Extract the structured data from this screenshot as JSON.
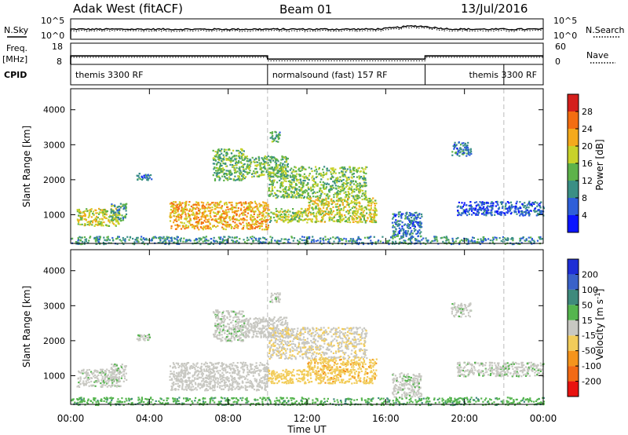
{
  "header": {
    "station": "Adak West (fitACF)",
    "beam": "Beam 01",
    "date": "13/Jul/2016"
  },
  "panel_labels": {
    "nsky": "N.Sky",
    "nsearch": "N.Search",
    "freq_line1": "Freq.",
    "freq_line2": "[MHz]",
    "nave": "Nave",
    "cpid": "CPID"
  },
  "nsky_ticks": {
    "top": "10^5",
    "bottom": "10^0"
  },
  "freq_ticks": [
    "18",
    "8"
  ],
  "nave_ticks": [
    "60",
    "0"
  ],
  "cpid_segments": [
    {
      "label": "themis 3300 RF",
      "start": 0,
      "end": 10
    },
    {
      "label": "normalsound (fast) 157 RF",
      "start": 10,
      "end": 18
    },
    {
      "label": "themis 3300 RF",
      "start": 18,
      "end": 24
    }
  ],
  "x_ticks": [
    "00:00",
    "04:00",
    "08:00",
    "12:00",
    "16:00",
    "20:00",
    "00:00"
  ],
  "x_label": "Time UT",
  "y_ticks": [
    "1000",
    "2000",
    "3000",
    "4000"
  ],
  "y_label": "Slant Range [km]",
  "power_scale": {
    "label": "Power [dB]",
    "ticks": [
      "4",
      "8",
      "12",
      "16",
      "20",
      "24",
      "28"
    ],
    "colors": [
      "#0a14ff",
      "#2e5fd9",
      "#3a8f85",
      "#5db24a",
      "#c8d22a",
      "#f4a91c",
      "#f36d11",
      "#d41f1c"
    ]
  },
  "velocity_scale": {
    "label": "Velocity [m s^-1]",
    "ticks": [
      "-200",
      "-100",
      "-50",
      "-15",
      "15",
      "50",
      "100",
      "200"
    ],
    "colors": [
      "#e8120f",
      "#f26a14",
      "#f5941c",
      "#f2cc5a",
      "#c8c8c2",
      "#55b54e",
      "#3f8a7c",
      "#3a62c9",
      "#1e2fd6"
    ]
  },
  "chart_data": {
    "type": "heatmap",
    "x_range_hours": [
      0,
      24
    ],
    "y_range_km": [
      180,
      4600
    ],
    "nsky_level": 1.2,
    "freq_mhz_segments": [
      {
        "start": 0,
        "end": 10,
        "value": 12
      },
      {
        "start": 10,
        "end": 18,
        "value": 10.5
      },
      {
        "start": 18,
        "end": 24,
        "value": 12
      }
    ],
    "nave_segments": [
      {
        "start": 0,
        "end": 10,
        "value": 20
      },
      {
        "start": 10,
        "end": 18,
        "value": 10
      },
      {
        "start": 18,
        "end": 24,
        "value": 20
      }
    ],
    "scatter_regions": [
      {
        "t0": 0.3,
        "t1": 2.5,
        "r0": 700,
        "r1": 1200,
        "power": 18,
        "velocity": 5
      },
      {
        "t0": 2.0,
        "t1": 2.8,
        "r0": 850,
        "r1": 1350,
        "power": 12,
        "velocity": 5
      },
      {
        "t0": 3.3,
        "t1": 4.1,
        "r0": 2000,
        "r1": 2200,
        "power": 8,
        "velocity": 5
      },
      {
        "t0": 5.0,
        "t1": 10.0,
        "r0": 600,
        "r1": 1400,
        "power": 22,
        "velocity": 0
      },
      {
        "t0": 7.2,
        "t1": 8.8,
        "r0": 2000,
        "r1": 2900,
        "power": 14,
        "velocity": 5
      },
      {
        "t0": 8.8,
        "t1": 11.0,
        "r0": 2100,
        "r1": 2700,
        "power": 14,
        "velocity": 0
      },
      {
        "t0": 10.0,
        "t1": 15.0,
        "r0": 1500,
        "r1": 2400,
        "power": 15,
        "velocity": -10
      },
      {
        "t0": 10.0,
        "t1": 12.0,
        "r0": 800,
        "r1": 1200,
        "power": 16,
        "velocity": -30
      },
      {
        "t0": 12.0,
        "t1": 15.5,
        "r0": 800,
        "r1": 1500,
        "power": 18,
        "velocity": -40
      },
      {
        "t0": 10.1,
        "t1": 10.6,
        "r0": 3100,
        "r1": 3400,
        "power": 12,
        "velocity": 5
      },
      {
        "t0": 16.3,
        "t1": 17.8,
        "r0": 400,
        "r1": 1100,
        "power": 8,
        "velocity": 5
      },
      {
        "t0": 19.3,
        "t1": 20.3,
        "r0": 2700,
        "r1": 3100,
        "power": 8,
        "velocity": 5
      },
      {
        "t0": 19.6,
        "t1": 24.0,
        "r0": 1000,
        "r1": 1400,
        "power": 6,
        "velocity": 5
      },
      {
        "t0": 0.0,
        "t1": 24.0,
        "r0": 180,
        "r1": 400,
        "power": 10,
        "velocity": 40
      }
    ]
  }
}
